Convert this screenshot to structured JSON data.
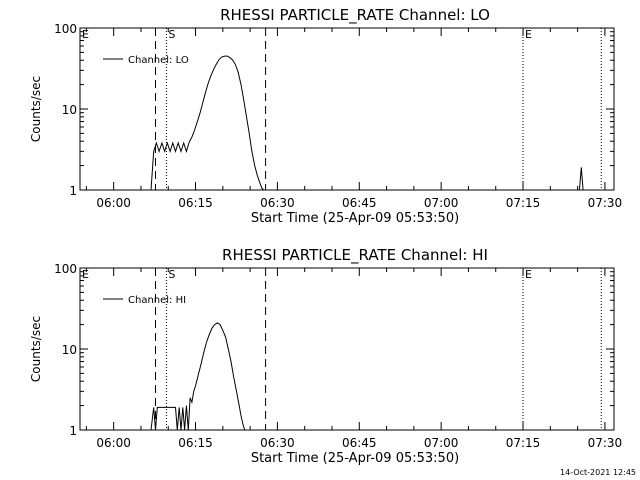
{
  "footer_timestamp": "14-Oct-2021 12:45",
  "chart_data": [
    {
      "type": "line",
      "title": "RHESSI PARTICLE_RATE Channel: LO",
      "xlabel": "Start Time (25-Apr-09 05:53:50)",
      "ylabel": "Counts/sec",
      "y_scale": "log",
      "ylim": [
        1,
        100
      ],
      "y_ticks": [
        {
          "value": 1,
          "label": "1"
        },
        {
          "value": 10,
          "label": "10"
        },
        {
          "value": 100,
          "label": "100"
        }
      ],
      "xlim": [
        "05:53:50",
        "07:31:40"
      ],
      "x_ticks": [
        {
          "value": "06:00",
          "label": "06:00"
        },
        {
          "value": "06:15",
          "label": "06:15"
        },
        {
          "value": "06:30",
          "label": "06:30"
        },
        {
          "value": "06:45",
          "label": "06:45"
        },
        {
          "value": "07:00",
          "label": "07:00"
        },
        {
          "value": "07:15",
          "label": "07:15"
        },
        {
          "value": "07:30",
          "label": "07:30"
        }
      ],
      "legend": {
        "placement": "top-left",
        "entries": [
          "Channel: LO"
        ]
      },
      "markers": [
        {
          "time": "05:53:50",
          "label": "E",
          "style": "none"
        },
        {
          "time": "06:07:40",
          "label": "",
          "style": "dashed"
        },
        {
          "time": "06:09:40",
          "label": "S",
          "style": "dotted"
        },
        {
          "time": "06:27:50",
          "label": "",
          "style": "dashed"
        },
        {
          "time": "07:15:00",
          "label": "E",
          "style": "dotted"
        },
        {
          "time": "07:29:20",
          "label": "",
          "style": "dotted"
        }
      ],
      "series": [
        {
          "name": "Channel: LO",
          "x": [
            "06:06:50",
            "06:07:20",
            "06:07:50",
            "06:08:20",
            "06:08:50",
            "06:09:20",
            "06:09:50",
            "06:10:20",
            "06:10:50",
            "06:11:20",
            "06:11:50",
            "06:12:20",
            "06:12:50",
            "06:13:20",
            "06:13:50",
            "06:14:20",
            "06:14:50",
            "06:15:20",
            "06:15:50",
            "06:16:20",
            "06:16:50",
            "06:17:20",
            "06:17:50",
            "06:18:20",
            "06:18:50",
            "06:19:20",
            "06:19:50",
            "06:20:20",
            "06:20:50",
            "06:21:20",
            "06:21:50",
            "06:22:20",
            "06:22:50",
            "06:23:20",
            "06:23:50",
            "06:24:20",
            "06:24:50",
            "06:25:20",
            "06:25:50",
            "06:26:20",
            "06:26:50",
            "06:27:10",
            "06:27:30"
          ],
          "y": [
            1,
            3.0,
            3.8,
            3.0,
            3.8,
            3.0,
            3.8,
            3.0,
            3.8,
            3.0,
            3.8,
            3.0,
            3.8,
            3.0,
            3.9,
            4.5,
            5.5,
            7,
            9,
            12,
            16,
            21,
            26,
            31,
            36,
            41,
            44,
            45,
            45,
            43,
            40,
            35,
            28,
            20,
            13,
            8,
            5,
            3,
            2,
            1.5,
            1.2,
            1.05,
            1
          ],
          "spikes": [
            {
              "x": [
                "07:25:20",
                "07:25:40",
                "07:26:00"
              ],
              "y": [
                1,
                1.9,
                1
              ]
            }
          ]
        }
      ]
    },
    {
      "type": "line",
      "title": "RHESSI PARTICLE_RATE Channel: HI",
      "xlabel": "Start Time (25-Apr-09 05:53:50)",
      "ylabel": "Counts/sec",
      "y_scale": "log",
      "ylim": [
        1,
        100
      ],
      "y_ticks": [
        {
          "value": 1,
          "label": "1"
        },
        {
          "value": 10,
          "label": "10"
        },
        {
          "value": 100,
          "label": "100"
        }
      ],
      "xlim": [
        "05:53:50",
        "07:31:40"
      ],
      "x_ticks": [
        {
          "value": "06:00",
          "label": "06:00"
        },
        {
          "value": "06:15",
          "label": "06:15"
        },
        {
          "value": "06:30",
          "label": "06:30"
        },
        {
          "value": "06:45",
          "label": "06:45"
        },
        {
          "value": "07:00",
          "label": "07:00"
        },
        {
          "value": "07:15",
          "label": "07:15"
        },
        {
          "value": "07:30",
          "label": "07:30"
        }
      ],
      "legend": {
        "placement": "top-left",
        "entries": [
          "Channel: HI"
        ]
      },
      "markers": [
        {
          "time": "05:53:50",
          "label": "E",
          "style": "none"
        },
        {
          "time": "06:07:40",
          "label": "",
          "style": "dashed"
        },
        {
          "time": "06:09:40",
          "label": "S",
          "style": "dotted"
        },
        {
          "time": "06:27:50",
          "label": "",
          "style": "dashed"
        },
        {
          "time": "07:15:00",
          "label": "E",
          "style": "dotted"
        },
        {
          "time": "07:29:20",
          "label": "",
          "style": "dotted"
        }
      ],
      "series": [
        {
          "name": "Channel: HI",
          "x": [
            "06:06:50",
            "06:07:20",
            "06:07:40",
            "06:08:00",
            "06:08:40",
            "06:09:20",
            "06:10:00",
            "06:10:40",
            "06:11:20",
            "06:11:40",
            "06:12:00",
            "06:12:20",
            "06:12:40",
            "06:13:00",
            "06:13:20",
            "06:13:40",
            "06:14:00",
            "06:14:20",
            "06:14:40",
            "06:15:00",
            "06:15:30",
            "06:16:00",
            "06:16:30",
            "06:17:00",
            "06:17:30",
            "06:18:00",
            "06:18:30",
            "06:19:00",
            "06:19:30",
            "06:20:00",
            "06:20:30",
            "06:21:00",
            "06:21:30",
            "06:22:00",
            "06:22:30",
            "06:23:00",
            "06:23:20",
            "06:23:40",
            "06:24:00"
          ],
          "y": [
            1,
            1.9,
            1,
            1.9,
            1.9,
            1.9,
            1.9,
            1.9,
            1.9,
            1,
            1.9,
            1,
            1.9,
            1,
            2,
            1,
            2.5,
            2.2,
            3,
            3.5,
            4.8,
            6.5,
            9,
            12,
            15,
            18,
            20,
            21,
            20,
            17,
            14,
            10,
            7,
            4.5,
            3,
            2,
            1.5,
            1.2,
            1
          ]
        }
      ]
    }
  ]
}
